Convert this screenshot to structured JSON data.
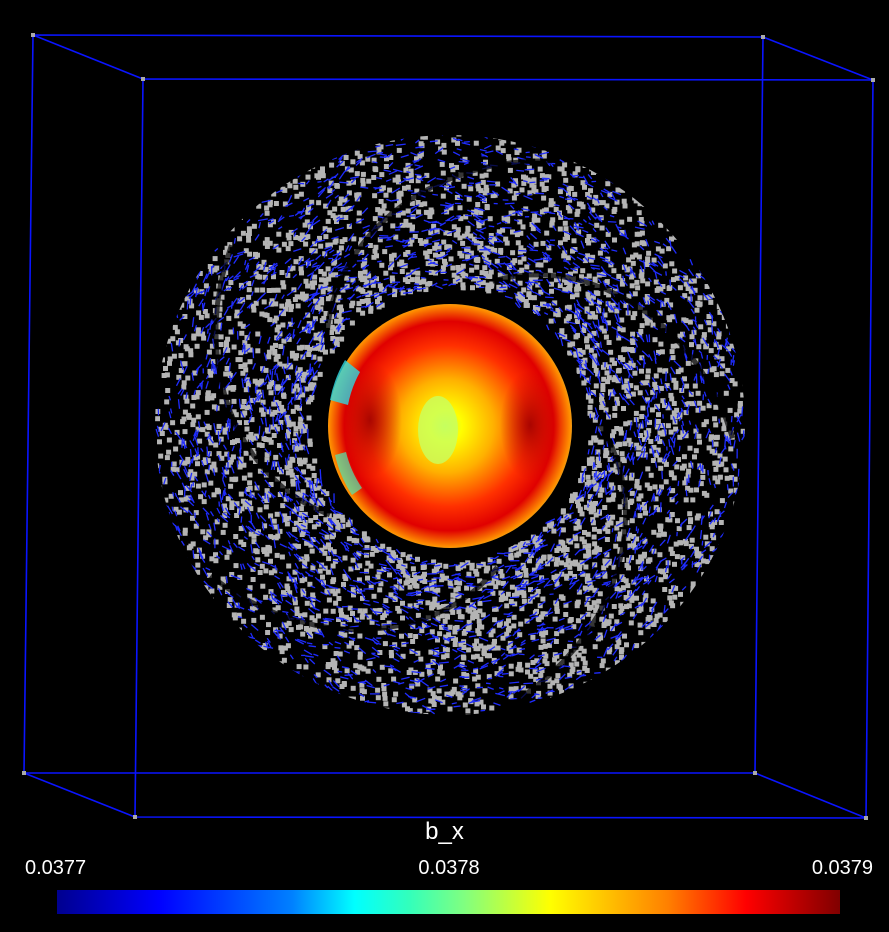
{
  "colors": {
    "background": "#000000",
    "bounding_box": "#0000ff",
    "glyph_blue": "#1f2cff",
    "glyph_gray": "#b4b4b4"
  },
  "scene": {
    "outer_shell": "vector-glyph-ring",
    "inner_sphere": "colormapped-sphere"
  },
  "colorbar": {
    "title": "b_x",
    "min_label": "0.0377",
    "mid_label": "0.0378",
    "max_label": "0.0379",
    "colormap": "jet"
  }
}
